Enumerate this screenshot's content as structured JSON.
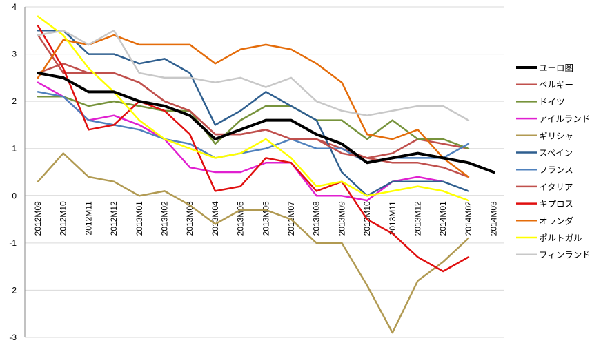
{
  "chart_data": {
    "type": "line",
    "title": "",
    "xlabel": "",
    "ylabel": "",
    "ylim": [
      -3,
      4
    ],
    "yticks": [
      -3,
      -2,
      -1,
      0,
      1,
      2,
      3,
      4
    ],
    "grid": "horizontal",
    "legend_position": "right",
    "categories": [
      "2012M09",
      "2012M10",
      "2012M11",
      "2012M12",
      "2013M01",
      "2013M02",
      "2013M03",
      "2013M04",
      "2013M05",
      "2013M06",
      "2013M07",
      "2013M08",
      "2013M09",
      "2013M10",
      "2013M11",
      "2013M12",
      "2014M01",
      "2014M02",
      "2014M03"
    ],
    "series": [
      {
        "name": "ユーロ圏",
        "color": "#000000",
        "width": 4,
        "values": [
          2.6,
          2.5,
          2.2,
          2.2,
          2.0,
          1.9,
          1.7,
          1.2,
          1.4,
          1.6,
          1.6,
          1.3,
          1.1,
          0.7,
          0.8,
          0.9,
          0.8,
          0.7,
          0.5
        ]
      },
      {
        "name": "ベルギー",
        "color": "#c0504d",
        "width": 2.5,
        "values": [
          2.6,
          2.8,
          2.6,
          2.6,
          2.4,
          2.0,
          1.8,
          1.3,
          1.3,
          1.4,
          1.2,
          1.2,
          1.0,
          0.8,
          0.9,
          1.2,
          1.1,
          1.0,
          null
        ]
      },
      {
        "name": "ドイツ",
        "color": "#77933c",
        "width": 2.5,
        "values": [
          2.1,
          2.1,
          1.9,
          2.0,
          1.9,
          1.8,
          1.8,
          1.1,
          1.6,
          1.9,
          1.9,
          1.6,
          1.6,
          1.2,
          1.6,
          1.2,
          1.2,
          1.0,
          null
        ]
      },
      {
        "name": "アイルランド",
        "color": "#e020d0",
        "width": 2.5,
        "values": [
          2.4,
          2.1,
          1.6,
          1.7,
          1.5,
          1.2,
          0.6,
          0.5,
          0.5,
          0.7,
          0.7,
          0.0,
          0.0,
          -0.1,
          0.3,
          0.4,
          0.3,
          null,
          null
        ]
      },
      {
        "name": "ギリシャ",
        "color": "#b19a52",
        "width": 2.5,
        "values": [
          0.3,
          0.9,
          0.4,
          0.3,
          0.0,
          0.1,
          -0.2,
          -0.6,
          -0.3,
          -0.3,
          -0.5,
          -1.0,
          -1.0,
          -1.9,
          -2.9,
          -1.8,
          -1.4,
          -0.9,
          null
        ]
      },
      {
        "name": "スペイン",
        "color": "#2f5f8f",
        "width": 2.5,
        "values": [
          3.5,
          3.5,
          3.0,
          3.0,
          2.8,
          2.9,
          2.6,
          1.5,
          1.8,
          2.2,
          1.9,
          1.6,
          0.5,
          0.0,
          0.3,
          0.3,
          0.3,
          0.1,
          null
        ]
      },
      {
        "name": "フランス",
        "color": "#4f81bd",
        "width": 2.5,
        "values": [
          2.2,
          2.1,
          1.6,
          1.5,
          1.4,
          1.2,
          1.1,
          0.8,
          0.9,
          1.0,
          1.2,
          1.0,
          1.0,
          0.7,
          0.8,
          0.8,
          0.8,
          1.1,
          null
        ]
      },
      {
        "name": "イタリア",
        "color": "#c0504d",
        "width": 2.5,
        "values": [
          3.4,
          2.6,
          2.6,
          2.6,
          2.4,
          2.0,
          1.8,
          1.3,
          1.3,
          1.4,
          1.2,
          1.2,
          0.9,
          0.8,
          0.7,
          0.7,
          0.6,
          0.4,
          null
        ]
      },
      {
        "name": "キプロス",
        "color": "#e01010",
        "width": 2.5,
        "values": [
          3.6,
          2.7,
          1.4,
          1.5,
          2.0,
          1.8,
          1.3,
          0.1,
          0.2,
          0.8,
          0.7,
          0.1,
          0.3,
          -0.5,
          -0.8,
          -1.3,
          -1.6,
          -1.3,
          null
        ]
      },
      {
        "name": "オランダ",
        "color": "#e46c0a",
        "width": 2.5,
        "values": [
          2.5,
          3.3,
          3.2,
          3.4,
          3.2,
          3.2,
          3.2,
          2.8,
          3.1,
          3.2,
          3.1,
          2.8,
          2.4,
          1.3,
          1.2,
          1.4,
          0.8,
          0.4,
          null
        ]
      },
      {
        "name": "ポルトガル",
        "color": "#ffff00",
        "width": 2.5,
        "values": [
          3.8,
          3.4,
          2.7,
          2.2,
          1.6,
          1.2,
          1.0,
          0.8,
          0.9,
          1.2,
          0.8,
          0.2,
          0.3,
          0.0,
          0.1,
          0.2,
          0.1,
          -0.1,
          null
        ]
      },
      {
        "name": "フィンランド",
        "color": "#c8c8c8",
        "width": 2.5,
        "values": [
          3.4,
          3.5,
          3.2,
          3.5,
          2.6,
          2.5,
          2.5,
          2.4,
          2.5,
          2.3,
          2.5,
          2.0,
          1.8,
          1.7,
          1.8,
          1.9,
          1.9,
          1.6,
          null
        ]
      }
    ]
  }
}
